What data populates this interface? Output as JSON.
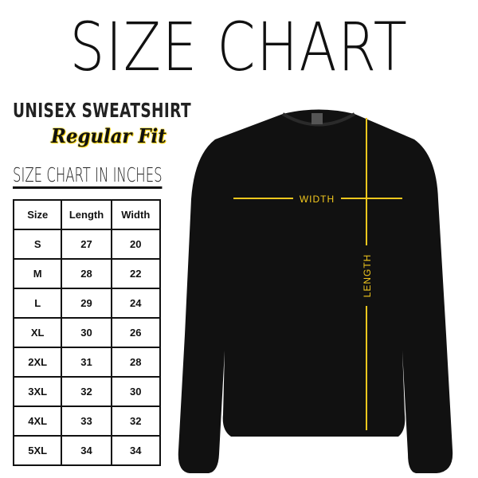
{
  "title": "SIZE CHART",
  "subtitle": "UNISEX SWEATSHIRT",
  "fit": "Regular Fit",
  "table_title": "SIZE CHART IN INCHES",
  "table": {
    "headers": [
      "Size",
      "Length",
      "Width"
    ],
    "rows": [
      [
        "S",
        "27",
        "20"
      ],
      [
        "M",
        "28",
        "22"
      ],
      [
        "L",
        "29",
        "24"
      ],
      [
        "XL",
        "30",
        "26"
      ],
      [
        "2XL",
        "31",
        "28"
      ],
      [
        "3XL",
        "32",
        "30"
      ],
      [
        "4XL",
        "33",
        "32"
      ],
      [
        "5XL",
        "34",
        "34"
      ]
    ]
  },
  "garment": {
    "width_label": "WIDTH",
    "length_label": "LENGTH",
    "color": "#111111",
    "measure_color": "#f2c81e"
  }
}
